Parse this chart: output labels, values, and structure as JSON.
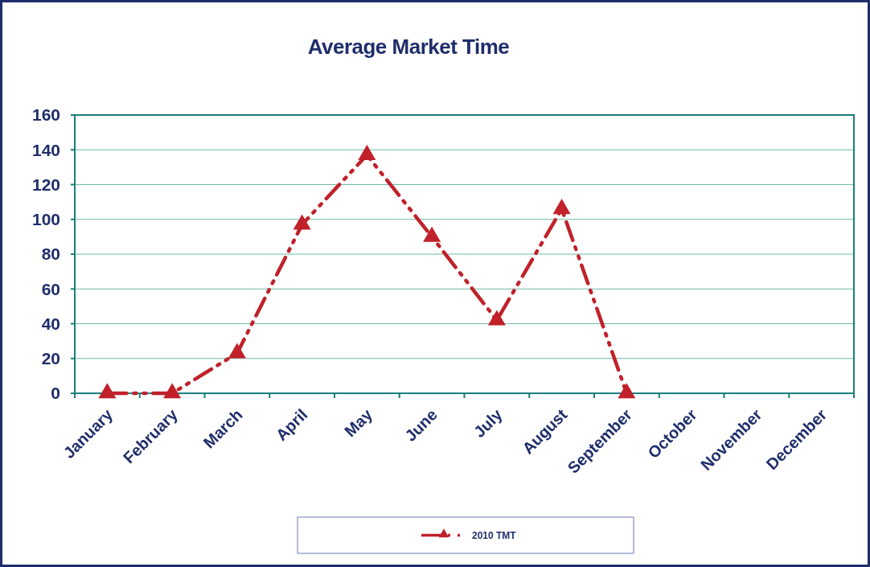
{
  "chart_data": {
    "type": "line",
    "title": "Average Market Time",
    "categories": [
      "January",
      "February",
      "March",
      "April",
      "May",
      "June",
      "July",
      "August",
      "September",
      "October",
      "November",
      "December"
    ],
    "series": [
      {
        "name": "2010 TMT",
        "color": "#c0212a",
        "values": [
          0,
          0,
          23,
          97,
          137,
          90,
          42,
          106,
          0,
          null,
          null,
          null
        ]
      }
    ],
    "ylim": [
      0,
      160
    ],
    "yticks": [
      0,
      20,
      40,
      60,
      80,
      100,
      120,
      140,
      160
    ],
    "grid": "y",
    "legend": "bottom",
    "marker": "triangle",
    "line_style": "dashed"
  }
}
